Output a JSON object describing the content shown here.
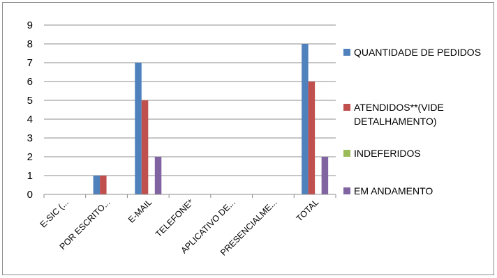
{
  "chart_data": {
    "type": "bar",
    "categories": [
      "E-SIC (...",
      "POR ESCRITO...",
      "E-MAIL",
      "TELEFONE*",
      "APLICATIVO DE...",
      "PRESENCIALME...",
      "TOTAL"
    ],
    "series": [
      {
        "name": "QUANTIDADE DE PEDIDOS",
        "color": "#4f81bd",
        "values": [
          0,
          1,
          7,
          0,
          0,
          0,
          8
        ]
      },
      {
        "name": "ATENDIDOS**(VIDE DETALHAMENTO)",
        "color": "#c0504d",
        "values": [
          0,
          1,
          5,
          0,
          0,
          0,
          6
        ]
      },
      {
        "name": "INDEFERIDOS",
        "color": "#9bbb59",
        "values": [
          0,
          0,
          0,
          0,
          0,
          0,
          0
        ]
      },
      {
        "name": "EM ANDAMENTO",
        "color": "#8064a2",
        "values": [
          0,
          0,
          2,
          0,
          0,
          0,
          2
        ]
      }
    ],
    "legend_lines": [
      [
        "QUANTIDADE DE PEDIDOS"
      ],
      [
        "ATENDIDOS**(VIDE",
        "DETALHAMENTO)"
      ],
      [
        "INDEFERIDOS"
      ],
      [
        "EM ANDAMENTO"
      ]
    ],
    "yticks": [
      "0",
      "1",
      "2",
      "3",
      "4",
      "5",
      "6",
      "7",
      "8",
      "9"
    ],
    "ylim": [
      0,
      9
    ],
    "grid": true,
    "legend_position": "right",
    "title": "",
    "xlabel": "",
    "ylabel": ""
  }
}
